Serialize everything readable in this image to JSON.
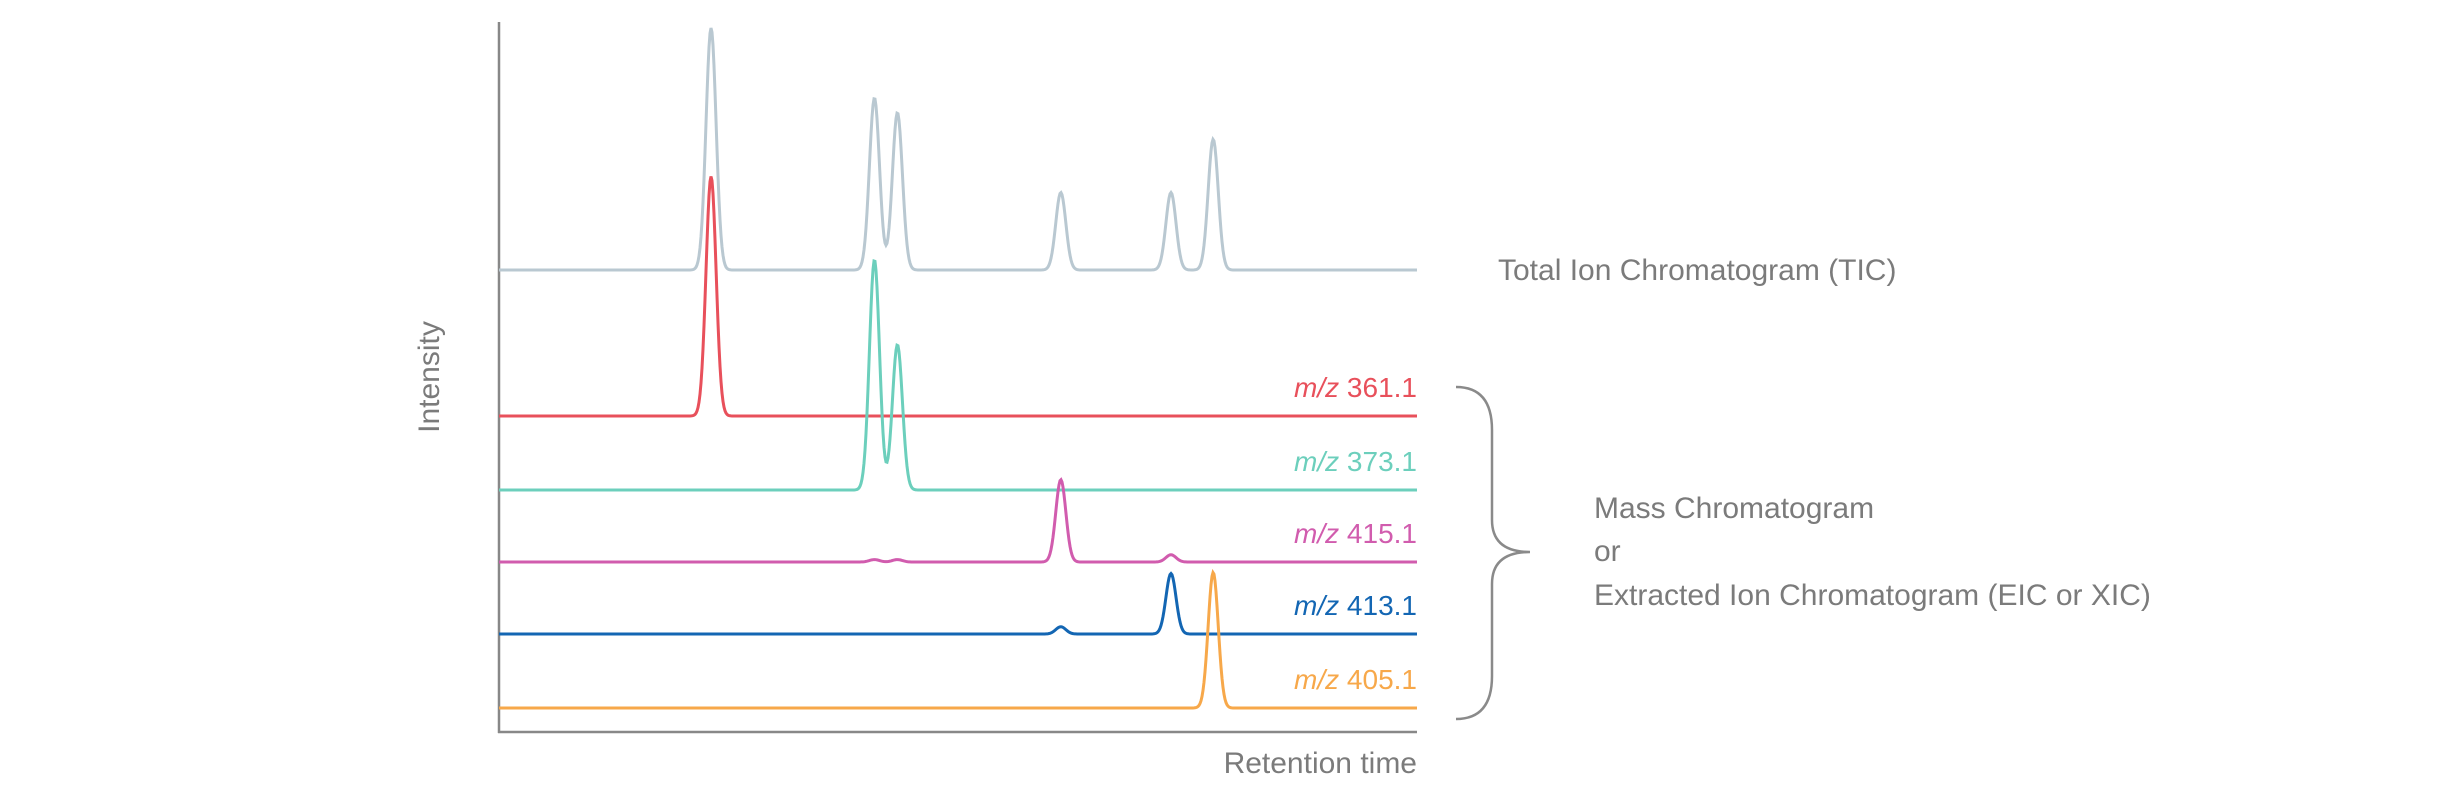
{
  "chart_data": {
    "type": "line",
    "x_label": "Retention time",
    "y_label": "Intensity",
    "xlim": [
      0,
      100
    ],
    "ylim": [
      0,
      100
    ],
    "series": [
      {
        "name": "Total Ion Chromatogram (TIC)",
        "color": "#b9c8d1",
        "x": [
          23.1,
          40.9,
          43.4,
          61.2,
          73.2,
          77.8
        ],
        "values": [
          100,
          71,
          65,
          32,
          32,
          54
        ]
      },
      {
        "name": "m/z 361.1",
        "color": "#e8505b",
        "x": [
          23.1
        ],
        "values": [
          99
        ]
      },
      {
        "name": "m/z 373.1",
        "color": "#6ccfbc",
        "x": [
          40.9,
          43.4
        ],
        "values": [
          95,
          60
        ]
      },
      {
        "name": "m/z 415.1",
        "color": "#d15cae",
        "x": [
          40.9,
          43.4,
          61.2,
          73.2
        ],
        "values": [
          1,
          1,
          34,
          3
        ]
      },
      {
        "name": "m/z 413.1",
        "color": "#1366b3",
        "x": [
          61.2,
          73.2
        ],
        "values": [
          3,
          25
        ]
      },
      {
        "name": "m/z 405.1",
        "color": "#f7a84a",
        "x": [
          77.8
        ],
        "values": [
          56
        ]
      }
    ],
    "annotation": [
      "Mass Chromatogram",
      "or",
      "Extracted Ion Chromatogram (EIC or XIC)"
    ]
  }
}
